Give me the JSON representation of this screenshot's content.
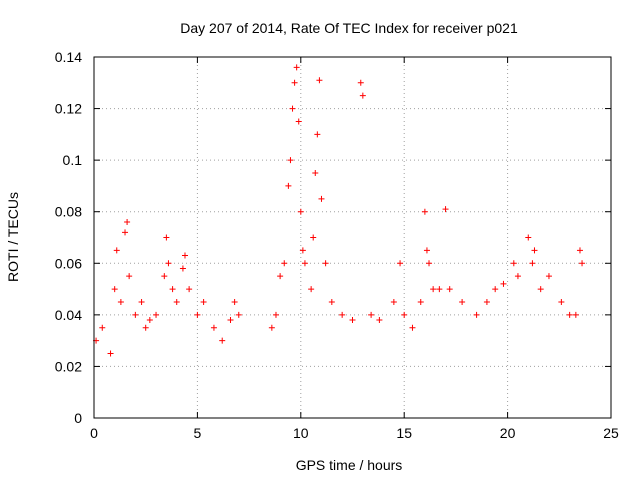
{
  "chart_data": {
    "type": "scatter",
    "title": "Day 207 of 2014, Rate Of TEC Index for receiver p021",
    "xlabel": "GPS time / hours",
    "ylabel": "ROTI / TECUs",
    "xlim": [
      0,
      25
    ],
    "ylim": [
      0,
      0.14
    ],
    "xticks": [
      0,
      5,
      10,
      15,
      20,
      25
    ],
    "xtick_labels": [
      "0",
      "5",
      "10",
      "15",
      "20",
      "25"
    ],
    "yticks": [
      0,
      0.02,
      0.04,
      0.06,
      0.08,
      0.1,
      0.12,
      0.14
    ],
    "ytick_labels": [
      "0",
      "0.02",
      "0.04",
      "0.06",
      "0.08",
      "0.1",
      "0.12",
      "0.14"
    ],
    "grid": true,
    "marker": "plus",
    "color": "#ff0000",
    "series": [
      {
        "name": "ROTI",
        "x": [
          0.1,
          0.4,
          0.8,
          1.0,
          1.1,
          1.3,
          1.5,
          1.6,
          1.7,
          2.0,
          2.3,
          2.5,
          2.7,
          3.0,
          3.4,
          3.5,
          3.6,
          3.8,
          4.0,
          4.3,
          4.4,
          4.6,
          5.0,
          5.3,
          5.8,
          6.2,
          6.6,
          6.8,
          7.0,
          8.6,
          8.8,
          9.0,
          9.2,
          9.4,
          9.5,
          9.6,
          9.7,
          9.8,
          9.9,
          10.0,
          10.1,
          10.2,
          10.5,
          10.6,
          10.7,
          10.8,
          10.9,
          11.0,
          11.2,
          11.5,
          12.0,
          12.5,
          12.9,
          13.0,
          13.4,
          13.8,
          14.5,
          14.8,
          15.0,
          15.4,
          15.8,
          16.0,
          16.1,
          16.2,
          16.4,
          16.7,
          17.0,
          17.2,
          17.8,
          18.5,
          19.0,
          19.4,
          19.8,
          20.3,
          20.5,
          21.0,
          21.2,
          21.3,
          21.6,
          22.0,
          22.6,
          23.0,
          23.3,
          23.5,
          23.6
        ],
        "y": [
          0.03,
          0.035,
          0.025,
          0.05,
          0.065,
          0.045,
          0.072,
          0.076,
          0.055,
          0.04,
          0.045,
          0.035,
          0.038,
          0.04,
          0.055,
          0.07,
          0.06,
          0.05,
          0.045,
          0.058,
          0.063,
          0.05,
          0.04,
          0.045,
          0.035,
          0.03,
          0.038,
          0.045,
          0.04,
          0.035,
          0.04,
          0.055,
          0.06,
          0.09,
          0.1,
          0.12,
          0.13,
          0.136,
          0.115,
          0.08,
          0.065,
          0.06,
          0.05,
          0.07,
          0.095,
          0.11,
          0.131,
          0.085,
          0.06,
          0.045,
          0.04,
          0.038,
          0.13,
          0.125,
          0.04,
          0.038,
          0.045,
          0.06,
          0.04,
          0.035,
          0.045,
          0.08,
          0.065,
          0.06,
          0.05,
          0.05,
          0.081,
          0.05,
          0.045,
          0.04,
          0.045,
          0.05,
          0.052,
          0.06,
          0.055,
          0.07,
          0.06,
          0.065,
          0.05,
          0.055,
          0.045,
          0.04,
          0.04,
          0.065,
          0.06
        ]
      }
    ]
  }
}
